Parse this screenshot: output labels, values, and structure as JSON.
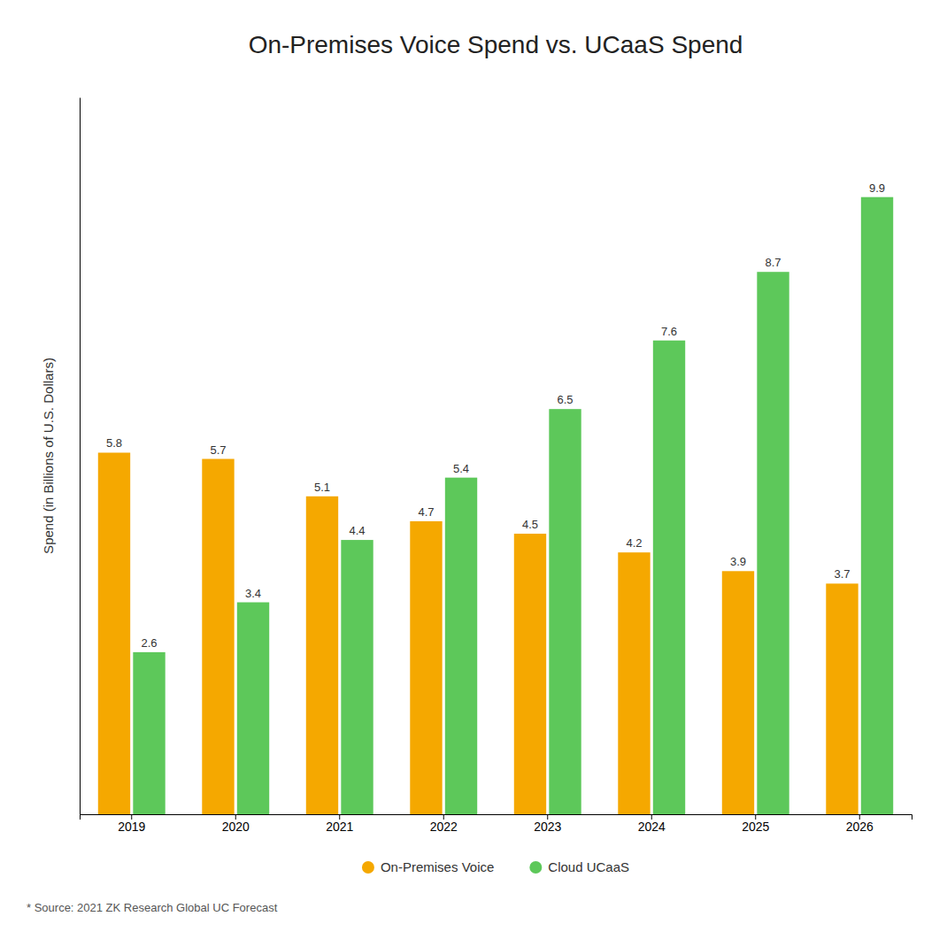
{
  "chart_data": {
    "type": "bar",
    "title": "On-Premises Voice Spend vs. UCaaS Spend",
    "ylabel": "Spend (in Billions of U.S. Dollars)",
    "annotations": [
      "* Source: 2021 ZK Research Global UC Forecast"
    ],
    "categories": [
      "2019",
      "2020",
      "2021",
      "2022",
      "2023",
      "2024",
      "2025",
      "2026"
    ],
    "series": [
      {
        "name": "On-Premises Voice",
        "color": "#F5A800",
        "values": [
          5.8,
          5.7,
          5.1,
          4.7,
          4.5,
          4.2,
          3.9,
          3.7
        ]
      },
      {
        "name": "Cloud UCaaS",
        "color": "#5DC85A",
        "values": [
          2.6,
          3.4,
          4.4,
          5.4,
          6.5,
          7.6,
          8.7,
          9.9
        ]
      }
    ],
    "ylim": [
      0,
      11.5
    ],
    "grid": false,
    "legend": "bottom",
    "data_labels": true,
    "tick_labels": "x"
  }
}
